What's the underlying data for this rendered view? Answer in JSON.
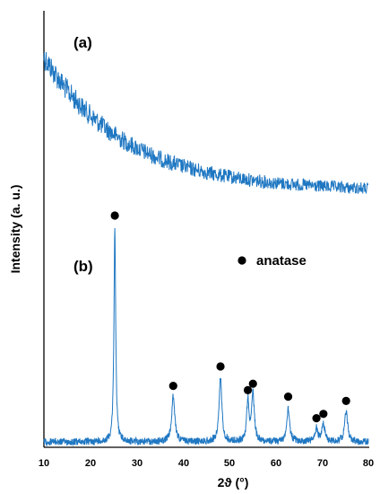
{
  "chart_data": {
    "type": "line",
    "title": "",
    "xlabel": "2ϑ (°)",
    "ylabel": "Intensity (a. u.)",
    "xlim": [
      10,
      80
    ],
    "x_ticks": [
      "10",
      "20",
      "30",
      "40",
      "50",
      "60",
      "70",
      "80"
    ],
    "y_ticks": false,
    "grid": false,
    "legend": {
      "placement": "right-middle",
      "entries": [
        {
          "marker": "filled-circle",
          "label": "anatase"
        }
      ]
    },
    "line_color": "#1f77c2",
    "series": [
      {
        "label": "(a)",
        "kind": "amorphous-broad-decay",
        "x_range": [
          10,
          80
        ],
        "relative_intensity_start": 1.0,
        "relative_intensity_end": 0.18,
        "noise": "high"
      },
      {
        "label": "(b)",
        "kind": "crystalline-peaks",
        "x_range": [
          10,
          80
        ],
        "peaks": [
          {
            "x": 25.3,
            "intensity": 100,
            "phase": "anatase"
          },
          {
            "x": 37.9,
            "intensity": 21,
            "phase": "anatase"
          },
          {
            "x": 48.1,
            "intensity": 30,
            "phase": "anatase"
          },
          {
            "x": 54.0,
            "intensity": 19,
            "phase": "anatase"
          },
          {
            "x": 55.1,
            "intensity": 22,
            "phase": "anatase"
          },
          {
            "x": 62.7,
            "intensity": 16,
            "phase": "anatase"
          },
          {
            "x": 68.8,
            "intensity": 6,
            "phase": "anatase"
          },
          {
            "x": 70.3,
            "intensity": 8,
            "phase": "anatase"
          },
          {
            "x": 75.2,
            "intensity": 14,
            "phase": "anatase"
          }
        ]
      }
    ]
  }
}
